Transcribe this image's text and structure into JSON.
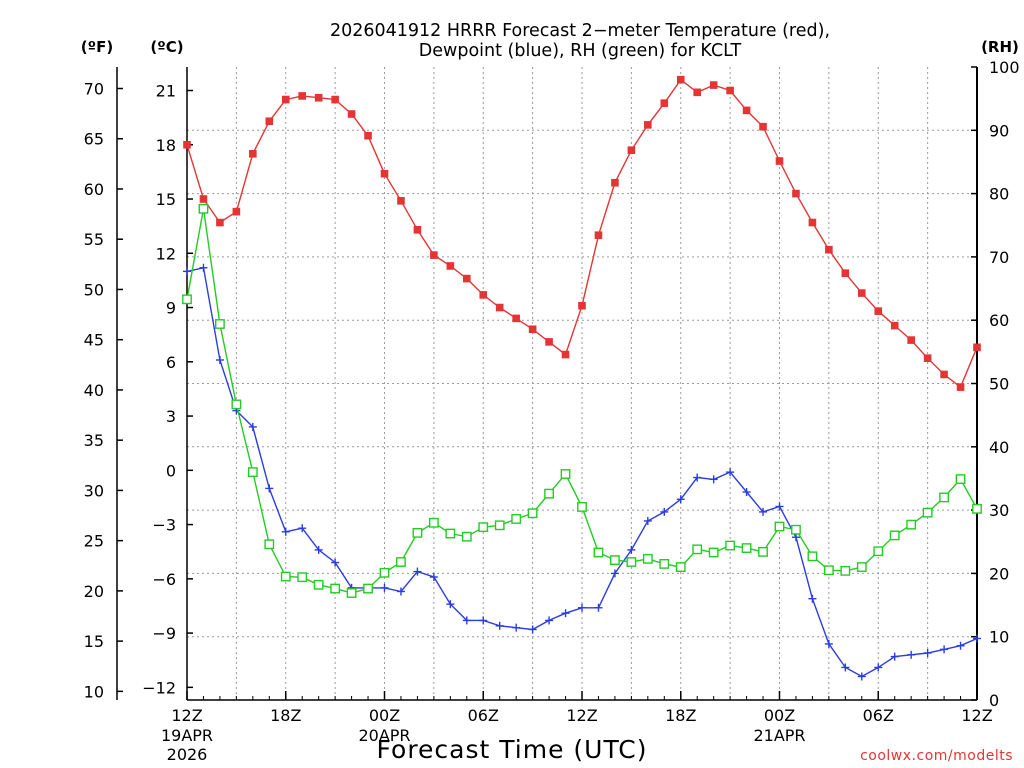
{
  "chart_data": {
    "type": "line",
    "title_line1": "2026041912 HRRR Forecast 2−meter Temperature (red),",
    "title_line2": "Dewpoint (blue), RH (green) for KCLT",
    "xlabel": "Forecast Time (UTC)",
    "credit": "coolwx.com/modelts",
    "left_units_f": "(ºF)",
    "left_units_c": "(ºC)",
    "right_units": "(RH)",
    "x_range_hours": [
      0,
      48
    ],
    "c_range": [
      -12.7,
      22.3
    ],
    "rh_range": [
      0,
      100
    ],
    "f_ticks": [
      10,
      15,
      20,
      25,
      30,
      35,
      40,
      45,
      50,
      55,
      60,
      65,
      70
    ],
    "c_ticks": [
      {
        "v": -12,
        "label": "−12"
      },
      {
        "v": -9,
        "label": "−9"
      },
      {
        "v": -6,
        "label": "−6"
      },
      {
        "v": -3,
        "label": "−3"
      },
      {
        "v": 0,
        "label": "0"
      },
      {
        "v": 3,
        "label": "3"
      },
      {
        "v": 6,
        "label": "6"
      },
      {
        "v": 9,
        "label": "9"
      },
      {
        "v": 12,
        "label": "12"
      },
      {
        "v": 15,
        "label": "15"
      },
      {
        "v": 18,
        "label": "18"
      },
      {
        "v": 21,
        "label": "21"
      }
    ],
    "rh_ticks": [
      0,
      10,
      20,
      30,
      40,
      50,
      60,
      70,
      80,
      90,
      100
    ],
    "x_ticks": [
      {
        "h": 0,
        "label": "12Z",
        "sub1": "19APR",
        "sub2": "2026"
      },
      {
        "h": 6,
        "label": "18Z"
      },
      {
        "h": 12,
        "label": "00Z",
        "sub1": "20APR"
      },
      {
        "h": 18,
        "label": "06Z"
      },
      {
        "h": 24,
        "label": "12Z"
      },
      {
        "h": 30,
        "label": "18Z"
      },
      {
        "h": 36,
        "label": "00Z",
        "sub1": "21APR"
      },
      {
        "h": 42,
        "label": "06Z"
      },
      {
        "h": 48,
        "label": "12Z"
      }
    ],
    "series": [
      {
        "name": "2-meter Temperature",
        "units": "°C",
        "color": "#e53434",
        "marker": "filled-square",
        "values": [
          18.0,
          15.0,
          13.7,
          14.3,
          17.5,
          19.3,
          20.5,
          20.7,
          20.6,
          20.5,
          19.7,
          18.5,
          16.4,
          14.9,
          13.3,
          11.9,
          11.3,
          10.6,
          9.7,
          9.0,
          8.4,
          7.8,
          7.1,
          6.4,
          9.1,
          13.0,
          15.9,
          17.7,
          19.1,
          20.3,
          21.6,
          20.9,
          21.3,
          21.0,
          19.9,
          19.0,
          17.1,
          15.3,
          13.7,
          12.2,
          10.9,
          9.8,
          8.8,
          8.0,
          7.2,
          6.2,
          5.3,
          4.6,
          6.8
        ]
      },
      {
        "name": "Dewpoint",
        "units": "°C",
        "color": "#2a3de0",
        "marker": "plus",
        "values": [
          11.0,
          11.2,
          6.1,
          3.3,
          2.4,
          -1.0,
          -3.4,
          -3.2,
          -4.4,
          -5.1,
          -6.5,
          -6.5,
          -6.5,
          -6.7,
          -5.6,
          -5.9,
          -7.4,
          -8.3,
          -8.3,
          -8.6,
          -8.7,
          -8.8,
          -8.3,
          -7.9,
          -7.6,
          -7.6,
          -5.7,
          -4.4,
          -2.8,
          -2.3,
          -1.6,
          -0.4,
          -0.5,
          -0.1,
          -1.2,
          -2.3,
          -2.0,
          -3.7,
          -7.1,
          -9.6,
          -10.9,
          -11.4,
          -10.9,
          -10.3,
          -10.2,
          -10.1,
          -9.9,
          -9.7,
          -9.3
        ]
      },
      {
        "name": "RH",
        "units": "%",
        "color": "#22cc22",
        "marker": "open-square",
        "values": [
          63.3,
          77.6,
          59.4,
          46.7,
          36.0,
          24.6,
          19.5,
          19.4,
          18.2,
          17.6,
          16.9,
          17.6,
          20.1,
          21.8,
          26.4,
          28.0,
          26.3,
          25.8,
          27.3,
          27.6,
          28.6,
          29.5,
          32.6,
          35.7,
          30.5,
          23.3,
          22.1,
          21.8,
          22.3,
          21.5,
          21.0,
          23.8,
          23.3,
          24.4,
          24.0,
          23.4,
          27.4,
          26.9,
          22.7,
          20.5,
          20.4,
          21.0,
          23.5,
          26.0,
          27.7,
          29.6,
          32.0,
          34.9,
          30.2
        ]
      }
    ]
  }
}
